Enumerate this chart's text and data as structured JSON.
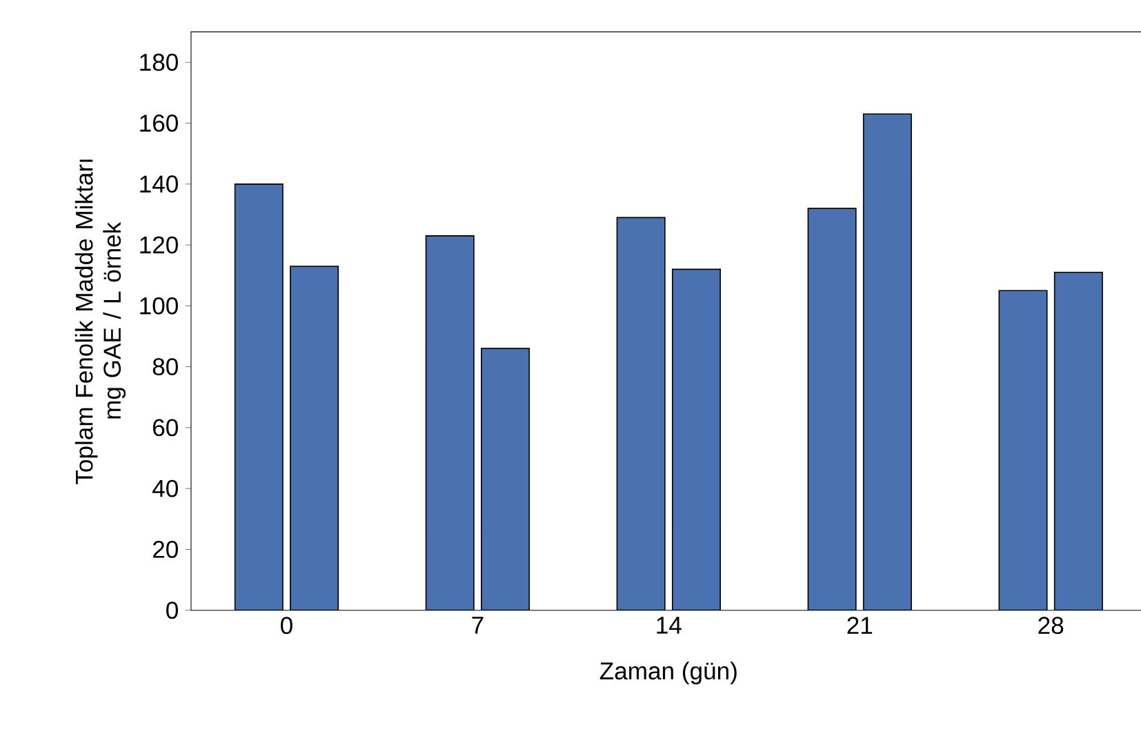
{
  "chart_data": {
    "type": "bar",
    "xlabel": "Zaman (gün)",
    "ylabel": "Toplam Fenolik Madde Miktarı\nmg GAE / L örnek",
    "categories": [
      "0",
      "7",
      "14",
      "21",
      "28"
    ],
    "series": [
      {
        "color": "#4a72b0",
        "values": [
          140,
          123,
          129,
          132,
          105
        ]
      },
      {
        "color": "#4a72b0",
        "values": [
          113,
          86,
          112,
          163,
          111
        ]
      }
    ],
    "ylim": [
      0,
      190
    ],
    "yticks": [
      0,
      20,
      40,
      60,
      80,
      100,
      120,
      140,
      160,
      180
    ],
    "grid": false
  }
}
